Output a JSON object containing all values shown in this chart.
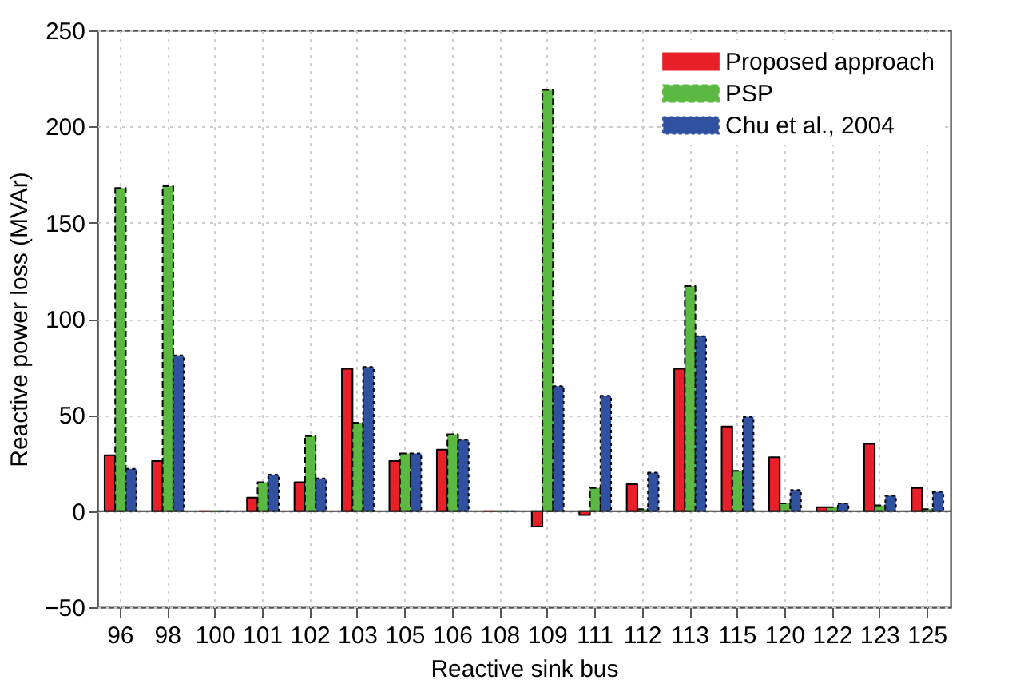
{
  "chart_data": {
    "type": "bar",
    "xlabel": "Reactive sink bus",
    "ylabel": "Reactive power loss (MVAr)",
    "categories": [
      "96",
      "98",
      "100",
      "101",
      "102",
      "103",
      "105",
      "106",
      "108",
      "109",
      "111",
      "112",
      "113",
      "115",
      "120",
      "122",
      "123",
      "125"
    ],
    "series": [
      {
        "name": "Proposed approach",
        "color": "#e8202a",
        "line_style": "solid",
        "values": [
          29,
          26,
          0,
          7,
          15,
          74,
          26,
          32,
          0,
          -8,
          -2,
          14,
          74,
          44,
          28,
          2,
          35,
          12
        ]
      },
      {
        "name": "PSP",
        "color": "#5bb943",
        "line_style": "dashed",
        "values": [
          168,
          169,
          0,
          15,
          39,
          46,
          30,
          40,
          0,
          219,
          12,
          1,
          117,
          21,
          4,
          2,
          3,
          1
        ]
      },
      {
        "name": "Chu et al., 2004",
        "color": "#3050a0",
        "line_style": "dotted",
        "values": [
          22,
          81,
          0,
          19,
          17,
          75,
          30,
          37,
          0,
          65,
          60,
          20,
          91,
          49,
          11,
          4,
          8,
          10
        ]
      }
    ],
    "ylim": [
      -50,
      250
    ],
    "yticks": [
      -50,
      0,
      50,
      100,
      150,
      200,
      250
    ],
    "grid": true,
    "legend": "top right"
  }
}
